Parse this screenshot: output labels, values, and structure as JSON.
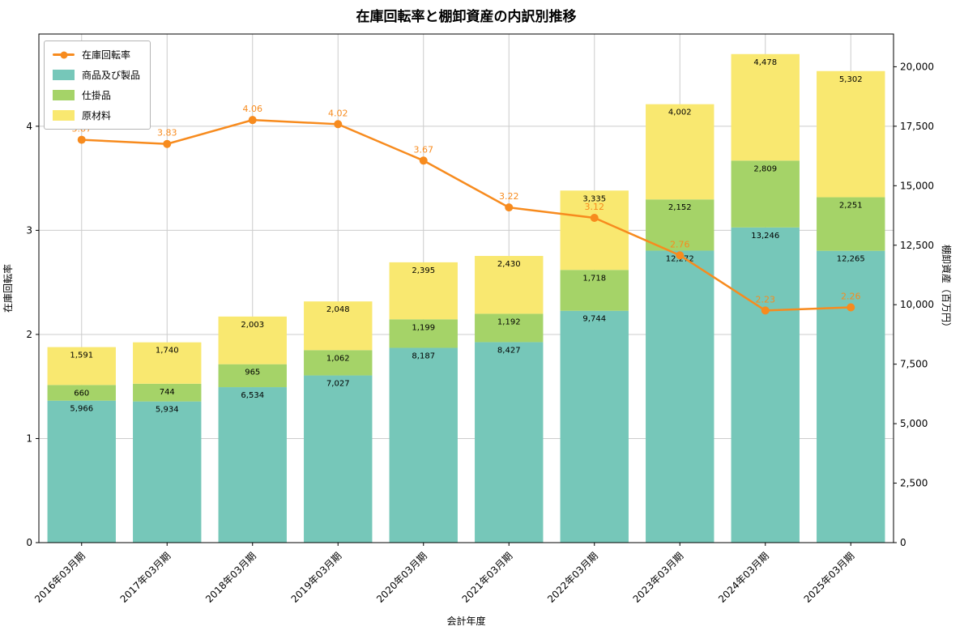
{
  "chart_data": {
    "type": "bar",
    "title": "在庫回転率と棚卸資産の内訳別推移",
    "xlabel": "会計年度",
    "ylabel_left": "在庫回転率",
    "ylabel_right": "棚卸資産（百万円）",
    "categories": [
      "2016年03月期",
      "2017年03月期",
      "2018年03月期",
      "2019年03月期",
      "2020年03月期",
      "2021年03月期",
      "2022年03月期",
      "2023年03月期",
      "2024年03月期",
      "2025年03月期"
    ],
    "bar_series": [
      {
        "name": "商品及び製品",
        "color": "#76c7b9",
        "values": [
          5966,
          5934,
          6534,
          7027,
          8187,
          8427,
          9744,
          12272,
          13246,
          12265
        ]
      },
      {
        "name": "仕掛品",
        "color": "#a5d368",
        "values": [
          660,
          744,
          965,
          1062,
          1199,
          1192,
          1718,
          2152,
          2809,
          2251
        ]
      },
      {
        "name": "原材料",
        "color": "#f9e870",
        "values": [
          1591,
          1740,
          2003,
          2048,
          2395,
          2430,
          3335,
          4002,
          4478,
          5302
        ]
      }
    ],
    "line_series": {
      "name": "在庫回転率",
      "color": "#f78b1e",
      "values": [
        3.87,
        3.83,
        4.06,
        4.02,
        3.67,
        3.22,
        3.12,
        2.76,
        2.23,
        2.26
      ]
    },
    "left_axis": {
      "ticks": [
        0,
        1,
        2,
        3,
        4
      ],
      "max": 4.886
    },
    "right_axis": {
      "ticks": [
        0,
        2500,
        5000,
        7500,
        10000,
        12500,
        15000,
        17500,
        20000
      ],
      "max": 21376
    },
    "legend": [
      "在庫回転率",
      "商品及び製品",
      "仕掛品",
      "原材料"
    ],
    "grid": true,
    "legend_position": "upper-left",
    "colors": {
      "grid": "#cccccc",
      "spine": "#000000",
      "bar_label": "#000000"
    }
  }
}
